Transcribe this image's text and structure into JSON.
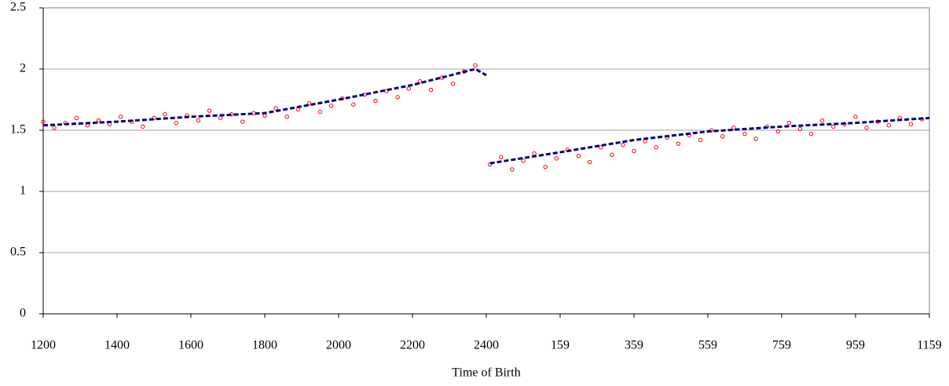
{
  "chart_data": {
    "type": "scatter",
    "x_label": "Time of Birth",
    "xlim": [
      0,
      24
    ],
    "ylim": [
      0,
      2.5
    ],
    "xticks": [
      {
        "value": 0,
        "label": "1200"
      },
      {
        "value": 2,
        "label": "1400"
      },
      {
        "value": 4,
        "label": "1600"
      },
      {
        "value": 6,
        "label": "1800"
      },
      {
        "value": 8,
        "label": "2000"
      },
      {
        "value": 10,
        "label": "2200"
      },
      {
        "value": 12,
        "label": "2400"
      },
      {
        "value": 14,
        "label": "159"
      },
      {
        "value": 16,
        "label": "359"
      },
      {
        "value": 18,
        "label": "559"
      },
      {
        "value": 20,
        "label": "759"
      },
      {
        "value": 22,
        "label": "959"
      },
      {
        "value": 24,
        "label": "1159"
      }
    ],
    "yticks": [
      0,
      0.5,
      1,
      1.5,
      2,
      2.5
    ],
    "grid": true,
    "series": [
      {
        "style": "markers",
        "color": "#ff0000",
        "x": [
          0,
          0.3,
          0.6,
          0.9,
          1.2,
          1.5,
          1.8,
          2.1,
          2.4,
          2.7,
          3.0,
          3.3,
          3.6,
          3.9,
          4.2,
          4.5,
          4.8,
          5.1,
          5.4,
          5.7,
          6.0,
          6.3,
          6.6,
          6.9,
          7.2,
          7.5,
          7.8,
          8.1,
          8.4,
          8.7,
          9.0,
          9.3,
          9.6,
          9.9,
          10.2,
          10.5,
          10.8,
          11.1,
          11.4,
          11.7
        ],
        "values": [
          1.57,
          1.52,
          1.56,
          1.6,
          1.54,
          1.58,
          1.55,
          1.61,
          1.57,
          1.53,
          1.6,
          1.63,
          1.56,
          1.62,
          1.58,
          1.66,
          1.6,
          1.63,
          1.57,
          1.64,
          1.62,
          1.68,
          1.61,
          1.67,
          1.72,
          1.65,
          1.7,
          1.76,
          1.71,
          1.79,
          1.74,
          1.82,
          1.77,
          1.84,
          1.9,
          1.83,
          1.93,
          1.88,
          1.98,
          2.03
        ]
      },
      {
        "style": "markers",
        "color": "#ff0000",
        "x": [
          12.1,
          12.4,
          12.7,
          13.0,
          13.3,
          13.6,
          13.9,
          14.2,
          14.5,
          14.8,
          15.1,
          15.4,
          15.7,
          16.0,
          16.3,
          16.6,
          16.9,
          17.2,
          17.5,
          17.8,
          18.1,
          18.4,
          18.7,
          19.0,
          19.3,
          19.6,
          19.9,
          20.2,
          20.5,
          20.8,
          21.1,
          21.4,
          21.7,
          22.0,
          22.3,
          22.6,
          22.9,
          23.2,
          23.5,
          23.8
        ],
        "values": [
          1.22,
          1.28,
          1.18,
          1.25,
          1.31,
          1.2,
          1.27,
          1.34,
          1.29,
          1.24,
          1.36,
          1.3,
          1.38,
          1.33,
          1.41,
          1.36,
          1.44,
          1.39,
          1.46,
          1.42,
          1.5,
          1.45,
          1.52,
          1.47,
          1.43,
          1.53,
          1.49,
          1.56,
          1.51,
          1.47,
          1.58,
          1.53,
          1.55,
          1.61,
          1.52,
          1.57,
          1.54,
          1.6,
          1.55,
          1.59
        ]
      },
      {
        "style": "line",
        "color": "#000080",
        "x": [
          0,
          2,
          4,
          6,
          8,
          10,
          11.7,
          12
        ],
        "values": [
          1.54,
          1.57,
          1.61,
          1.64,
          1.75,
          1.87,
          2.0,
          1.95
        ]
      },
      {
        "style": "line",
        "color": "#000080",
        "x": [
          12.1,
          14,
          16,
          18,
          20,
          22,
          24
        ],
        "values": [
          1.23,
          1.32,
          1.42,
          1.49,
          1.53,
          1.56,
          1.6
        ]
      }
    ]
  }
}
